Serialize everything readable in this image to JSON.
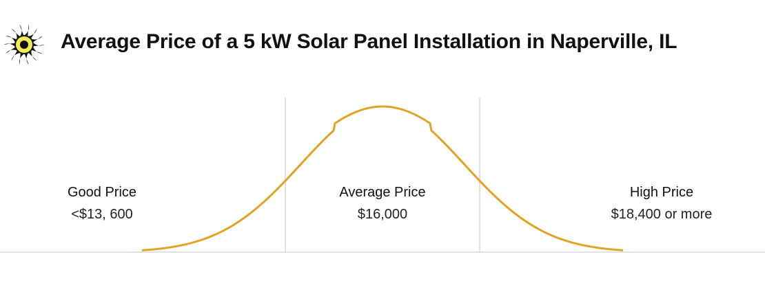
{
  "title": "Average Price of a 5 kW Solar Panel Installation in Naperville, IL",
  "icon": "sun-logo-icon",
  "colors": {
    "curve": "#E3A224",
    "divider": "#D9D9D9",
    "baseline": "#D9D9D9",
    "sun_fill": "#F3EA5A"
  },
  "chart_data": {
    "type": "area",
    "shape": "bell-curve",
    "regions": [
      {
        "key": "good",
        "label": "Good Price",
        "value_text": "<$13, 600"
      },
      {
        "key": "average",
        "label": "Average Price",
        "value_text": "$16,000"
      },
      {
        "key": "high",
        "label": "High Price",
        "value_text": "$18,400 or more"
      }
    ],
    "thresholds": [
      13600,
      18400
    ],
    "mean": 16000,
    "grid": false,
    "legend": "none"
  }
}
